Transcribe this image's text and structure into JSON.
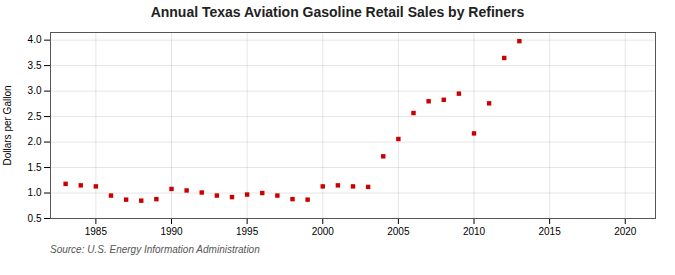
{
  "chart_data": {
    "type": "scatter",
    "title": "Annual Texas Aviation Gasoline Retail Sales by Refiners",
    "ylabel": "Dollars per Gallon",
    "source": "Source: U.S. Energy Information Administration",
    "color": "#cc0000",
    "marker": "square",
    "grid": true,
    "x": [
      1983,
      1984,
      1985,
      1986,
      1987,
      1988,
      1989,
      1990,
      1991,
      1992,
      1993,
      1994,
      1995,
      1996,
      1997,
      1998,
      1999,
      2000,
      2001,
      2002,
      2003,
      2004,
      2005,
      2006,
      2007,
      2008,
      2009,
      2010,
      2011,
      2012,
      2013
    ],
    "values": [
      1.18,
      1.15,
      1.13,
      0.95,
      0.87,
      0.85,
      0.88,
      1.08,
      1.05,
      1.01,
      0.95,
      0.92,
      0.97,
      1.0,
      0.95,
      0.88,
      0.87,
      1.13,
      1.15,
      1.13,
      1.12,
      1.72,
      2.06,
      2.57,
      2.8,
      2.83,
      2.95,
      2.17,
      2.76,
      3.65,
      3.98
    ],
    "xlim": [
      1982,
      2022
    ],
    "xticks": [
      1985,
      1990,
      1995,
      2000,
      2005,
      2010,
      2015,
      2020
    ],
    "ylim": [
      0.5,
      4.15
    ],
    "yticks": [
      0.5,
      {
        "value": 1.0,
        "label": "1.0"
      },
      1.5,
      {
        "value": 2.0,
        "label": "2.0"
      },
      2.5,
      {
        "value": 3.0,
        "label": "3.0"
      },
      3.5,
      {
        "value": 4.0,
        "label": "4.0"
      }
    ]
  }
}
